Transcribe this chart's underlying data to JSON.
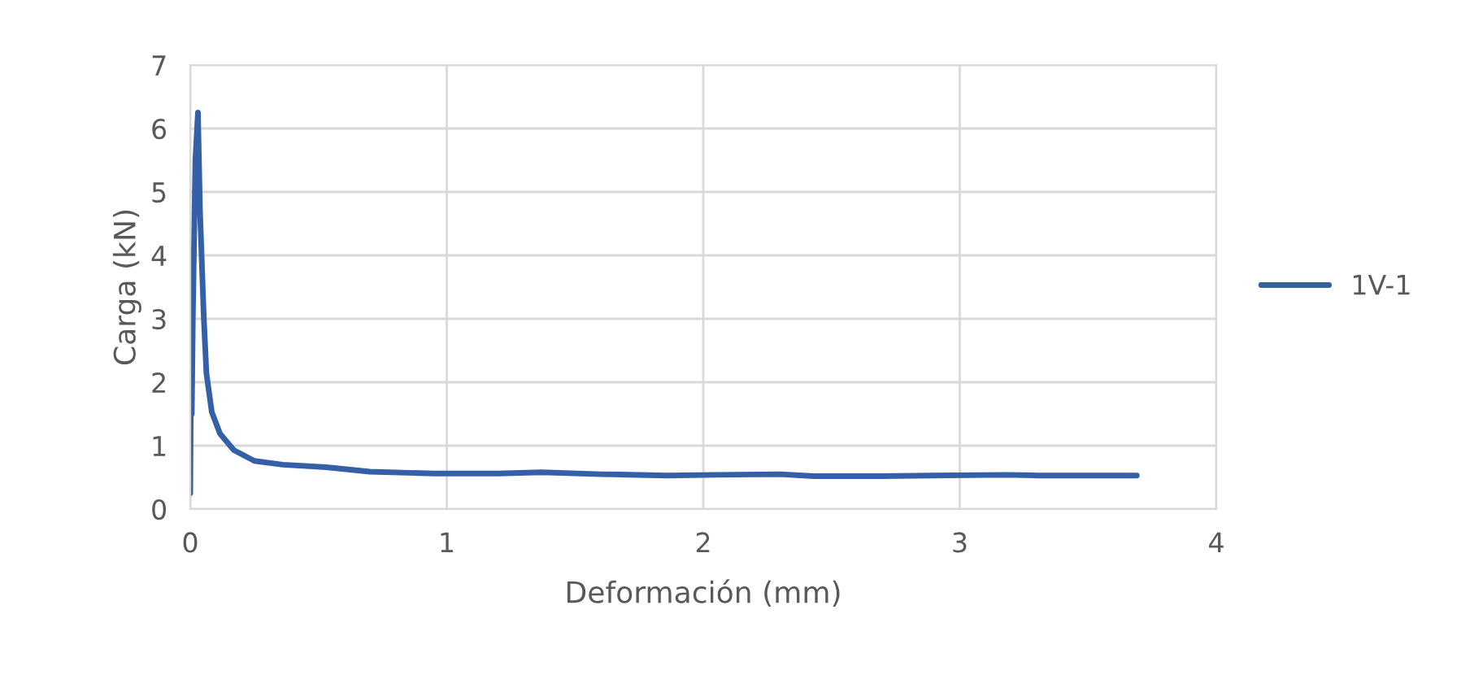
{
  "chart_data": {
    "type": "line",
    "xlabel": "Deformación (mm)",
    "ylabel": "Carga (kN)",
    "xlim": [
      0,
      4
    ],
    "xticks": [
      0,
      1,
      2,
      3,
      4
    ],
    "ylim": [
      0,
      7
    ],
    "yticks": [
      0,
      1,
      2,
      3,
      4,
      5,
      6,
      7
    ],
    "grid": true,
    "legend": "right",
    "marker": "none",
    "line_style": "solid",
    "series": [
      {
        "name": "1V-1",
        "color": "#3560a8",
        "x": [
          0,
          0.004,
          0.006,
          0.01,
          0.02,
          0.03,
          0.038,
          0.053,
          0.063,
          0.084,
          0.116,
          0.17,
          0.25,
          0.36,
          0.53,
          0.7,
          0.95,
          1.03,
          1.2,
          1.37,
          1.6,
          1.86,
          2.05,
          2.3,
          2.43,
          2.7,
          2.89,
          3.18,
          3.3,
          3.45,
          3.69
        ],
        "values": [
          0.25,
          2.9,
          1.5,
          3.0,
          5.5,
          6.25,
          4.7,
          3.0,
          2.14,
          1.53,
          1.19,
          0.93,
          0.76,
          0.7,
          0.66,
          0.59,
          0.56,
          0.56,
          0.56,
          0.58,
          0.55,
          0.53,
          0.54,
          0.55,
          0.52,
          0.52,
          0.53,
          0.54,
          0.53,
          0.53,
          0.53
        ]
      }
    ]
  }
}
